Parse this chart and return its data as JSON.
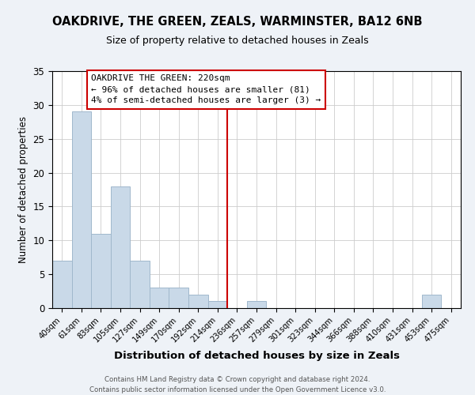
{
  "title": "OAKDRIVE, THE GREEN, ZEALS, WARMINSTER, BA12 6NB",
  "subtitle": "Size of property relative to detached houses in Zeals",
  "xlabel": "Distribution of detached houses by size in Zeals",
  "ylabel": "Number of detached properties",
  "bin_labels": [
    "40sqm",
    "61sqm",
    "83sqm",
    "105sqm",
    "127sqm",
    "149sqm",
    "170sqm",
    "192sqm",
    "214sqm",
    "236sqm",
    "257sqm",
    "279sqm",
    "301sqm",
    "323sqm",
    "344sqm",
    "366sqm",
    "388sqm",
    "410sqm",
    "431sqm",
    "453sqm",
    "475sqm"
  ],
  "bar_values": [
    7,
    29,
    11,
    18,
    7,
    3,
    3,
    2,
    1,
    0,
    1,
    0,
    0,
    0,
    0,
    0,
    0,
    0,
    0,
    2,
    0
  ],
  "bar_color": "#c9d9e8",
  "bar_edge_color": "#a0b8cc",
  "ylim": [
    0,
    35
  ],
  "yticks": [
    0,
    5,
    10,
    15,
    20,
    25,
    30,
    35
  ],
  "vline_x_index": 8,
  "vline_color": "#cc0000",
  "annotation_title": "OAKDRIVE THE GREEN: 220sqm",
  "annotation_line1": "← 96% of detached houses are smaller (81)",
  "annotation_line2": "4% of semi-detached houses are larger (3) →",
  "footer_line1": "Contains HM Land Registry data © Crown copyright and database right 2024.",
  "footer_line2": "Contains public sector information licensed under the Open Government Licence v3.0.",
  "background_color": "#eef2f7",
  "plot_background_color": "#ffffff",
  "grid_color": "#cccccc"
}
